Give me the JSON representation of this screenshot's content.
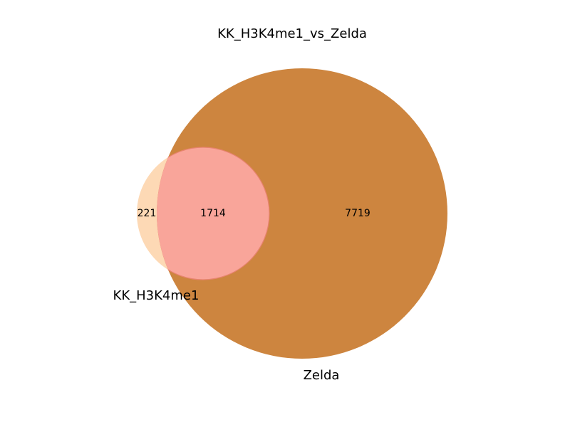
{
  "chart_data": {
    "type": "venn",
    "title": "KK_H3K4me1_vs_Zelda",
    "sets": [
      {
        "name": "KK_H3K4me1",
        "only_count": "221",
        "color": "#fdd9b5"
      },
      {
        "name": "Zelda",
        "only_count": "7719",
        "color": "#cd853f"
      }
    ],
    "intersection": {
      "count": "1714",
      "color": "#f9a59a",
      "edge_color": "#e8836f"
    }
  }
}
